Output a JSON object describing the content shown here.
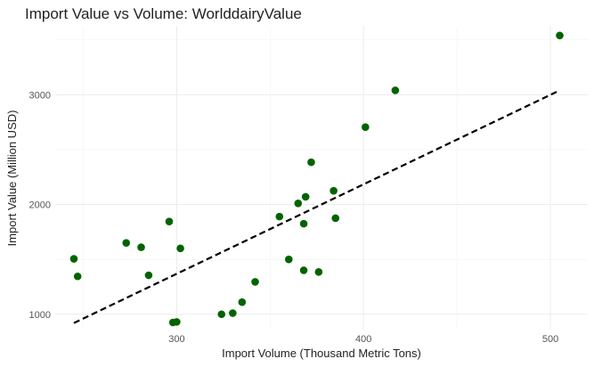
{
  "chart_data": {
    "type": "scatter",
    "title": "Import Value vs Volume: WorlddairyValue",
    "xlabel": "Import Volume (Thousand Metric Tons)",
    "ylabel": "Import Value (Million USD)",
    "xlim": [
      235,
      520
    ],
    "ylim": [
      860,
      3620
    ],
    "x_ticks": [
      300,
      400,
      500
    ],
    "x_tick_labels": [
      "300",
      "400",
      "500"
    ],
    "y_ticks": [
      1000,
      2000,
      3000
    ],
    "y_tick_labels": [
      "1000",
      "2000",
      "3000"
    ],
    "grid": true,
    "point_color": "#006400",
    "trend_line": {
      "style": "dashed",
      "color": "#000000",
      "x": [
        245,
        505
      ],
      "y": [
        920,
        3040
      ]
    },
    "points": [
      {
        "x": 245,
        "y": 1505
      },
      {
        "x": 247,
        "y": 1345
      },
      {
        "x": 273,
        "y": 1650
      },
      {
        "x": 281,
        "y": 1610
      },
      {
        "x": 285,
        "y": 1355
      },
      {
        "x": 296,
        "y": 1845
      },
      {
        "x": 298,
        "y": 925
      },
      {
        "x": 300,
        "y": 930
      },
      {
        "x": 302,
        "y": 1600
      },
      {
        "x": 324,
        "y": 1000
      },
      {
        "x": 330,
        "y": 1010
      },
      {
        "x": 335,
        "y": 1110
      },
      {
        "x": 342,
        "y": 1295
      },
      {
        "x": 355,
        "y": 1890
      },
      {
        "x": 360,
        "y": 1500
      },
      {
        "x": 365,
        "y": 2010
      },
      {
        "x": 368,
        "y": 1825
      },
      {
        "x": 368,
        "y": 1400
      },
      {
        "x": 369,
        "y": 2070
      },
      {
        "x": 372,
        "y": 2385
      },
      {
        "x": 376,
        "y": 1385
      },
      {
        "x": 384,
        "y": 2125
      },
      {
        "x": 385,
        "y": 1875
      },
      {
        "x": 401,
        "y": 2705
      },
      {
        "x": 417,
        "y": 3040
      },
      {
        "x": 505,
        "y": 3540
      }
    ]
  }
}
